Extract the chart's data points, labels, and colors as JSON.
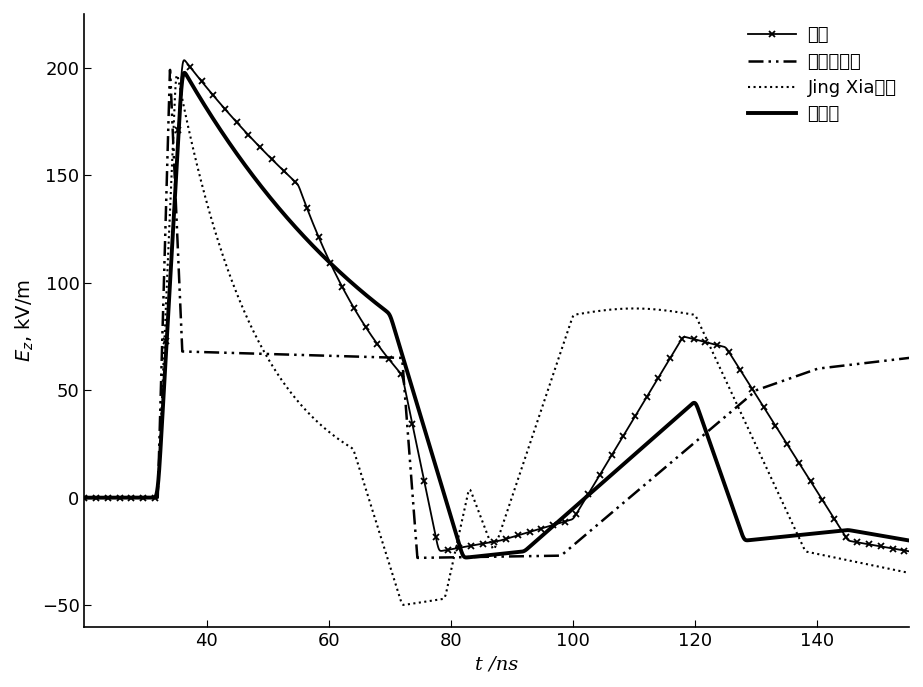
{
  "xlabel": "t /ns",
  "ylabel": "$E_z$, kV/m",
  "xlim": [
    20,
    155
  ],
  "ylim": [
    -60,
    225
  ],
  "xticks": [
    40,
    60,
    80,
    100,
    120,
    140
  ],
  "yticks": [
    -50,
    0,
    50,
    100,
    150,
    200
  ],
  "legend_labels": [
    "搀珊",
    "朱四桃等人",
    "Jing Xia等人",
    "本发明"
  ],
  "background_color": "#ffffff"
}
